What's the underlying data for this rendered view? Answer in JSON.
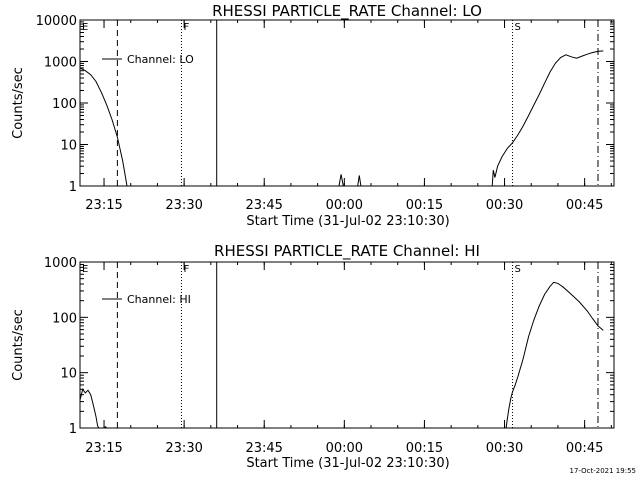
{
  "footer": {
    "timestamp": "17-Oct-2021 19:55"
  },
  "chart_data": [
    {
      "type": "line",
      "title": "RHESSI PARTICLE_RATE Channel: LO",
      "xlabel": "Start Time (31-Jul-02 23:10:30)",
      "ylabel": "Counts/sec",
      "yscale": "log",
      "ylim": [
        1,
        10000
      ],
      "xlim": [
        0,
        100
      ],
      "y_ticks": [
        {
          "v": 1,
          "label": "1"
        },
        {
          "v": 10,
          "label": "10"
        },
        {
          "v": 100,
          "label": "100"
        },
        {
          "v": 1000,
          "label": "1000"
        },
        {
          "v": 10000,
          "label": "10000"
        }
      ],
      "x_ticks": [
        {
          "v": 4.5,
          "label": "23:15"
        },
        {
          "v": 19.5,
          "label": "23:30"
        },
        {
          "v": 34.5,
          "label": "23:45"
        },
        {
          "v": 49.5,
          "label": "00:00"
        },
        {
          "v": 64.5,
          "label": "00:15"
        },
        {
          "v": 79.5,
          "label": "00:30"
        },
        {
          "v": 94.5,
          "label": "00:45"
        }
      ],
      "legend": {
        "label": "Channel: LO",
        "position": "top-left"
      },
      "markers": [
        {
          "x": 7.0,
          "style": "dashed",
          "label": "E"
        },
        {
          "x": 19.0,
          "style": "dotted",
          "label": "F"
        },
        {
          "x": 25.6,
          "style": "solid",
          "label": ""
        },
        {
          "x": 81.0,
          "style": "dotted",
          "label": "S"
        },
        {
          "x": 97.0,
          "style": "dashdot",
          "label": ""
        }
      ],
      "corner_labels": [
        "E",
        "F",
        "S"
      ],
      "series": [
        {
          "segments": [
            [
              [
                0,
                700
              ],
              [
                1,
                600
              ],
              [
                2,
                480
              ],
              [
                3,
                330
              ],
              [
                4,
                180
              ],
              [
                5,
                90
              ],
              [
                6,
                40
              ],
              [
                7,
                15
              ],
              [
                8,
                4
              ],
              [
                8.8,
                1
              ]
            ],
            [
              [
                48.5,
                1
              ],
              [
                48.9,
                1.9
              ],
              [
                49.3,
                1
              ]
            ],
            [
              [
                52,
                1
              ],
              [
                52.3,
                1.8
              ],
              [
                52.6,
                1
              ]
            ],
            [
              [
                77.2,
                1
              ],
              [
                77.4,
                2.4
              ],
              [
                77.7,
                1.6
              ],
              [
                78.2,
                3
              ],
              [
                79,
                5
              ],
              [
                80,
                8
              ],
              [
                81,
                11
              ],
              [
                82,
                17
              ],
              [
                83,
                28
              ],
              [
                84,
                50
              ],
              [
                85,
                90
              ],
              [
                86,
                160
              ],
              [
                87,
                300
              ],
              [
                88,
                550
              ],
              [
                89,
                900
              ],
              [
                90,
                1250
              ],
              [
                91,
                1450
              ],
              [
                92,
                1300
              ],
              [
                93,
                1200
              ],
              [
                94,
                1350
              ],
              [
                95,
                1500
              ],
              [
                96,
                1650
              ],
              [
                97,
                1750
              ],
              [
                98,
                1800
              ]
            ]
          ]
        }
      ]
    },
    {
      "type": "line",
      "title": "RHESSI PARTICLE_RATE Channel: HI",
      "xlabel": "Start Time (31-Jul-02 23:10:30)",
      "ylabel": "Counts/sec",
      "yscale": "log",
      "ylim": [
        1,
        1000
      ],
      "xlim": [
        0,
        100
      ],
      "y_ticks": [
        {
          "v": 1,
          "label": "1"
        },
        {
          "v": 10,
          "label": "10"
        },
        {
          "v": 100,
          "label": "100"
        },
        {
          "v": 1000,
          "label": "1000"
        }
      ],
      "x_ticks": [
        {
          "v": 4.5,
          "label": "23:15"
        },
        {
          "v": 19.5,
          "label": "23:30"
        },
        {
          "v": 34.5,
          "label": "23:45"
        },
        {
          "v": 49.5,
          "label": "00:00"
        },
        {
          "v": 64.5,
          "label": "00:15"
        },
        {
          "v": 79.5,
          "label": "00:30"
        },
        {
          "v": 94.5,
          "label": "00:45"
        }
      ],
      "legend": {
        "label": "Channel: HI",
        "position": "top-left"
      },
      "markers": [
        {
          "x": 7.0,
          "style": "dashed",
          "label": "E"
        },
        {
          "x": 19.0,
          "style": "dotted",
          "label": "F"
        },
        {
          "x": 25.6,
          "style": "solid",
          "label": ""
        },
        {
          "x": 81.0,
          "style": "dotted",
          "label": "S"
        },
        {
          "x": 97.0,
          "style": "dashdot",
          "label": ""
        }
      ],
      "corner_labels": [
        "E",
        "F",
        "S"
      ],
      "series": [
        {
          "segments": [
            [
              [
                0,
                3.2
              ],
              [
                0.5,
                5
              ],
              [
                1,
                4.3
              ],
              [
                1.5,
                4.8
              ],
              [
                2,
                4
              ],
              [
                2.5,
                2.6
              ],
              [
                3,
                1.6
              ],
              [
                3.3,
                1.1
              ],
              [
                3.5,
                1
              ]
            ],
            [
              [
                4.5,
                1
              ],
              [
                4.8,
                1.05
              ],
              [
                5,
                1
              ]
            ],
            [
              [
                79.8,
                1
              ],
              [
                80,
                1.4
              ],
              [
                80.3,
                2.2
              ],
              [
                80.7,
                3.5
              ],
              [
                81,
                4.5
              ],
              [
                81.5,
                6
              ],
              [
                82,
                8.5
              ],
              [
                83,
                18
              ],
              [
                84,
                45
              ],
              [
                85,
                90
              ],
              [
                86,
                160
              ],
              [
                87,
                260
              ],
              [
                88,
                360
              ],
              [
                88.7,
                430
              ],
              [
                89.5,
                410
              ],
              [
                90.5,
                350
              ],
              [
                92,
                260
              ],
              [
                93.5,
                190
              ],
              [
                95,
                130
              ],
              [
                96,
                95
              ],
              [
                97,
                70
              ],
              [
                98,
                58
              ]
            ]
          ]
        }
      ]
    }
  ]
}
